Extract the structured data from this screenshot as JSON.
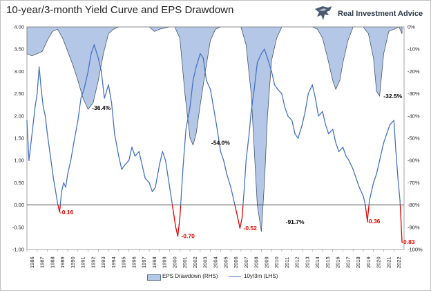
{
  "chart_data": {
    "type": "line",
    "title": "10-year/3-month Yield Curve and EPS Drawdown",
    "brand": "Real Investment Advice",
    "x_ticks": [
      "1986",
      "1987",
      "1988",
      "1989",
      "1990",
      "1991",
      "1992",
      "1993",
      "1994",
      "1995",
      "1996",
      "1997",
      "1998",
      "1999",
      "2000",
      "2001",
      "2002",
      "2003",
      "2004",
      "2005",
      "2006",
      "2007",
      "2008",
      "2009",
      "2010",
      "2011",
      "2012",
      "2013",
      "2014",
      "2015",
      "2016",
      "2017",
      "2018",
      "2019",
      "2020",
      "2021",
      "2022"
    ],
    "x_range": [
      1986,
      2023
    ],
    "y_left": {
      "range": [
        -1.0,
        4.0
      ],
      "ticks": [
        "4.00",
        "3.50",
        "3.00",
        "2.50",
        "2.00",
        "1.50",
        "1.00",
        "0.50",
        "0.00",
        "-0.50",
        "-1.00"
      ]
    },
    "y_right": {
      "range": [
        -100,
        0
      ],
      "ticks": [
        "0%",
        "-10%",
        "-20%",
        "-30%",
        "-40%",
        "-50%",
        "-60%",
        "-70%",
        "-80%",
        "-90%",
        "-100%"
      ]
    },
    "series": [
      {
        "name": "EPS Drawdown (RHS)",
        "kind": "area",
        "axis": "right",
        "color": "#b4c7e7",
        "edge": "#44546a",
        "x": [
          1986.0,
          1986.5,
          1987.0,
          1987.5,
          1988.0,
          1988.5,
          1989.0,
          1989.5,
          1990.0,
          1990.5,
          1991.0,
          1991.5,
          1992.0,
          1992.5,
          1993.0,
          1993.5,
          1994.0,
          1994.5,
          1995.0,
          1996.0,
          1997.0,
          1998.0,
          1998.5,
          1999.0,
          2000.0,
          2000.5,
          2001.0,
          2001.5,
          2002.0,
          2002.3,
          2002.6,
          2003.0,
          2003.5,
          2004.0,
          2004.5,
          2005.0,
          2006.0,
          2007.0,
          2007.5,
          2008.0,
          2008.3,
          2008.6,
          2009.0,
          2009.3,
          2009.6,
          2010.0,
          2010.5,
          2011.0,
          2012.0,
          2013.0,
          2014.0,
          2014.5,
          2015.0,
          2015.5,
          2016.0,
          2016.3,
          2016.7,
          2017.0,
          2017.5,
          2018.0,
          2019.0,
          2019.5,
          2020.0,
          2020.3,
          2020.6,
          2021.0,
          2021.5,
          2022.0,
          2022.5,
          2022.8
        ],
        "values": [
          -12,
          -13,
          -12,
          -11,
          -6,
          -2,
          -1,
          -5,
          -11,
          -17,
          -24,
          -32,
          -37,
          -34,
          -24,
          -12,
          -3,
          -1,
          0,
          0,
          0,
          0,
          -2,
          -1,
          0,
          0,
          -5,
          -30,
          -50,
          -53,
          -48,
          -35,
          -20,
          -6,
          -1,
          0,
          0,
          0,
          -8,
          -30,
          -55,
          -80,
          -92,
          -70,
          -40,
          -15,
          -5,
          0,
          0,
          0,
          0,
          -1,
          -5,
          -14,
          -24,
          -28,
          -24,
          -16,
          -6,
          0,
          0,
          -3,
          -14,
          -29,
          -31,
          -12,
          -2,
          -1,
          0,
          -3
        ]
      },
      {
        "name": "10y/3m (LHS)",
        "kind": "line",
        "axis": "left",
        "color": "#4472c4",
        "inversion_color": "#e00000",
        "x": [
          1986.0,
          1986.2,
          1986.4,
          1986.6,
          1986.8,
          1987.0,
          1987.2,
          1987.4,
          1987.6,
          1987.8,
          1988.0,
          1988.3,
          1988.6,
          1989.0,
          1989.2,
          1989.4,
          1989.6,
          1989.8,
          1990.0,
          1990.3,
          1990.6,
          1991.0,
          1991.3,
          1991.6,
          1992.0,
          1992.3,
          1992.6,
          1993.0,
          1993.3,
          1993.6,
          1994.0,
          1994.3,
          1994.6,
          1995.0,
          1995.3,
          1995.6,
          1996.0,
          1996.3,
          1996.6,
          1997.0,
          1997.3,
          1997.6,
          1998.0,
          1998.3,
          1998.6,
          1999.0,
          1999.3,
          1999.6,
          2000.0,
          2000.2,
          2000.4,
          2000.6,
          2000.8,
          2001.0,
          2001.3,
          2001.6,
          2002.0,
          2002.3,
          2002.6,
          2003.0,
          2003.3,
          2003.6,
          2004.0,
          2004.3,
          2004.6,
          2005.0,
          2005.3,
          2005.6,
          2006.0,
          2006.3,
          2006.6,
          2006.9,
          2007.1,
          2007.3,
          2007.5,
          2007.8,
          2008.0,
          2008.3,
          2008.6,
          2009.0,
          2009.3,
          2009.6,
          2010.0,
          2010.3,
          2010.6,
          2011.0,
          2011.3,
          2011.6,
          2012.0,
          2012.3,
          2012.6,
          2013.0,
          2013.3,
          2013.6,
          2014.0,
          2014.3,
          2014.6,
          2015.0,
          2015.3,
          2015.6,
          2016.0,
          2016.3,
          2016.6,
          2017.0,
          2017.3,
          2017.6,
          2018.0,
          2018.3,
          2018.6,
          2019.0,
          2019.2,
          2019.4,
          2019.6,
          2019.8,
          2020.0,
          2020.3,
          2020.6,
          2021.0,
          2021.3,
          2021.6,
          2022.0,
          2022.2,
          2022.4,
          2022.6,
          2022.8
        ],
        "values": [
          1.9,
          1.0,
          1.4,
          1.8,
          2.2,
          2.5,
          3.1,
          2.6,
          2.2,
          2.0,
          1.6,
          1.1,
          0.6,
          0.05,
          -0.16,
          0.3,
          0.5,
          0.4,
          0.7,
          1.0,
          1.4,
          1.9,
          2.4,
          2.6,
          3.0,
          3.4,
          3.6,
          3.3,
          3.0,
          2.4,
          2.7,
          2.3,
          1.6,
          1.1,
          0.8,
          0.9,
          1.0,
          1.3,
          1.1,
          1.2,
          0.9,
          0.6,
          0.5,
          0.3,
          0.4,
          0.9,
          1.2,
          1.0,
          0.4,
          0.1,
          -0.2,
          -0.5,
          -0.7,
          -0.3,
          0.8,
          1.7,
          2.2,
          2.8,
          3.1,
          3.4,
          3.3,
          2.8,
          2.6,
          2.2,
          1.8,
          1.2,
          1.0,
          0.7,
          0.4,
          0.1,
          -0.2,
          -0.52,
          -0.3,
          0.3,
          1.0,
          1.6,
          2.1,
          2.6,
          3.2,
          3.4,
          3.5,
          3.3,
          3.0,
          2.7,
          2.6,
          2.5,
          2.2,
          2.0,
          1.9,
          1.6,
          1.5,
          1.8,
          2.1,
          2.5,
          2.7,
          2.4,
          2.0,
          2.1,
          1.8,
          1.6,
          1.7,
          1.4,
          1.2,
          1.3,
          1.1,
          1.0,
          0.8,
          0.6,
          0.4,
          0.2,
          0.0,
          -0.36,
          0.1,
          0.3,
          0.5,
          0.7,
          1.0,
          1.4,
          1.6,
          1.8,
          1.9,
          1.2,
          0.6,
          0.1,
          -0.83
        ]
      }
    ],
    "annotations": [
      {
        "text": "-0.16",
        "x": 1989.9,
        "y": -0.16,
        "color": "#e00000"
      },
      {
        "text": "-36.4%",
        "x": 1993.3,
        "y": 2.18,
        "color": "#000000"
      },
      {
        "text": "-0.70",
        "x": 2001.8,
        "y": -0.7,
        "color": "#e00000"
      },
      {
        "text": "-54.0%",
        "x": 2005.0,
        "y": 1.4,
        "color": "#000000"
      },
      {
        "text": "-0.52",
        "x": 2007.9,
        "y": -0.52,
        "color": "#e00000"
      },
      {
        "text": "-91.7%",
        "x": 2012.3,
        "y": -0.38,
        "color": "#000000"
      },
      {
        "text": "-0.36",
        "x": 2020.0,
        "y": -0.36,
        "color": "#e00000"
      },
      {
        "text": "-32.5%",
        "x": 2021.9,
        "y": 2.45,
        "color": "#000000"
      },
      {
        "text": "-0.83",
        "x": 2023.4,
        "y": -0.83,
        "color": "#e00000"
      }
    ],
    "grid": false,
    "legend_position": "bottom"
  }
}
